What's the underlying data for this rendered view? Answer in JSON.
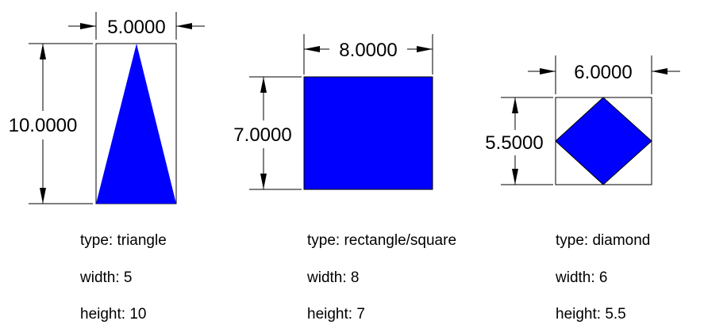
{
  "colors": {
    "shape_fill": "#0000ff",
    "line": "#000000",
    "background": "#ffffff"
  },
  "shapes": [
    {
      "id": "triangle",
      "dim_width_label": "5.0000",
      "dim_height_label": "10.0000",
      "info": {
        "type": "type: triangle",
        "width": "width: 5",
        "height": "height: 10"
      }
    },
    {
      "id": "rectangle",
      "dim_width_label": "8.0000",
      "dim_height_label": "7.0000",
      "info": {
        "type": "type: rectangle/square",
        "width": "width: 8",
        "height": "height: 7"
      }
    },
    {
      "id": "diamond",
      "dim_width_label": "6.0000",
      "dim_height_label": "5.5000",
      "info": {
        "type": "type: diamond",
        "width": "width: 6",
        "height": "height: 5.5"
      }
    }
  ]
}
